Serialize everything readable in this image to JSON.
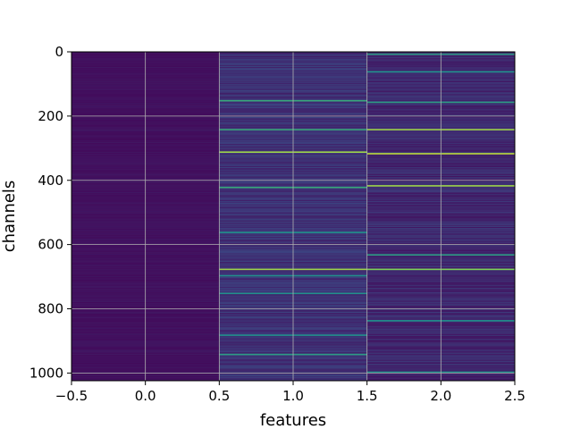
{
  "chart_data": {
    "type": "heatmap",
    "title": "",
    "xlabel": "features",
    "ylabel": "channels",
    "xlim": [
      -0.5,
      2.5
    ],
    "ylim": [
      1024,
      0
    ],
    "y_inverted": true,
    "n_rows": 1024,
    "columns": [
      0,
      1,
      2
    ],
    "colormap": "viridis",
    "grid": true,
    "xticks": [
      -0.5,
      0.0,
      0.5,
      1.0,
      1.5,
      2.0,
      2.5
    ],
    "xtick_labels": [
      "−0.5",
      "0.0",
      "0.5",
      "1.0",
      "1.5",
      "2.0",
      "2.5"
    ],
    "yticks": [
      0,
      200,
      400,
      600,
      800,
      1000
    ],
    "ytick_labels": [
      "0",
      "200",
      "400",
      "600",
      "800",
      "1000"
    ],
    "column_summary": [
      {
        "column": 0,
        "typical_value": 0.05,
        "description": "nearly uniform low values"
      },
      {
        "column": 1,
        "typical_value": 0.15,
        "description": "low values with scattered high-valued channels"
      },
      {
        "column": 2,
        "typical_value": 0.12,
        "description": "low values with scattered high-valued channels"
      }
    ],
    "highlighted_channels": [
      {
        "channel": 5,
        "column": 2,
        "value": 0.55
      },
      {
        "channel": 60,
        "column": 2,
        "value": 0.5
      },
      {
        "channel": 150,
        "column": 1,
        "value": 0.6
      },
      {
        "channel": 155,
        "column": 2,
        "value": 0.55
      },
      {
        "channel": 240,
        "column": 1,
        "value": 0.6
      },
      {
        "channel": 240,
        "column": 2,
        "value": 0.85
      },
      {
        "channel": 310,
        "column": 1,
        "value": 0.85
      },
      {
        "channel": 315,
        "column": 2,
        "value": 0.9
      },
      {
        "channel": 420,
        "column": 1,
        "value": 0.6
      },
      {
        "channel": 415,
        "column": 2,
        "value": 0.85
      },
      {
        "channel": 560,
        "column": 1,
        "value": 0.5
      },
      {
        "channel": 630,
        "column": 2,
        "value": 0.55
      },
      {
        "channel": 675,
        "column": 1,
        "value": 0.85
      },
      {
        "channel": 675,
        "column": 2,
        "value": 0.8
      },
      {
        "channel": 695,
        "column": 1,
        "value": 0.5
      },
      {
        "channel": 750,
        "column": 1,
        "value": 0.5
      },
      {
        "channel": 835,
        "column": 2,
        "value": 0.5
      },
      {
        "channel": 880,
        "column": 1,
        "value": 0.5
      },
      {
        "channel": 940,
        "column": 1,
        "value": 0.55
      },
      {
        "channel": 995,
        "column": 2,
        "value": 0.5
      }
    ]
  }
}
